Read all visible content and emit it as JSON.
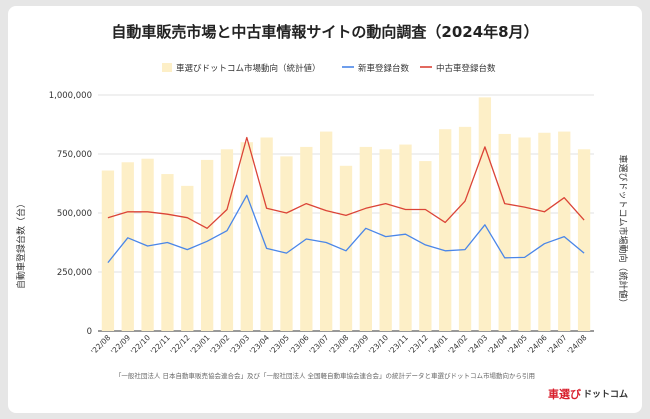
{
  "chart_data": {
    "type": "bar",
    "title": "自動車販売市場と中古車情報サイトの動向調査（2024年8月）",
    "ylabel": "自動車登録台数（台）",
    "y2label": "車選びドットコム市場動向（統計値）",
    "ylim": [
      0,
      1000000
    ],
    "yticks": [
      "0",
      "250,000",
      "500,000",
      "750,000",
      "1,000,000"
    ],
    "grid": true,
    "legend": "top",
    "categories": [
      "'22/08",
      "'22/09",
      "'22/10",
      "'22/11",
      "'22/12",
      "'23/01",
      "'23/02",
      "'23/03",
      "'23/04",
      "'23/05",
      "'23/06",
      "'23/07",
      "'23/08",
      "'23/09",
      "'23/10",
      "'23/11",
      "'23/12",
      "'24/01",
      "'24/02",
      "'24/03",
      "'24/04",
      "'24/05",
      "'24/06",
      "'24/07",
      "'24/08"
    ],
    "series": [
      {
        "name": "車選びドットコム市場動向（統計値）",
        "kind": "bar",
        "color": "#fdefc7",
        "values": [
          680000,
          715000,
          730000,
          665000,
          615000,
          725000,
          770000,
          800000,
          820000,
          740000,
          780000,
          845000,
          700000,
          780000,
          770000,
          790000,
          720000,
          855000,
          865000,
          990000,
          835000,
          820000,
          840000,
          845000,
          770000
        ]
      },
      {
        "name": "新車登録台数",
        "kind": "line",
        "color": "#4a86e8",
        "values": [
          290000,
          395000,
          360000,
          375000,
          345000,
          380000,
          425000,
          575000,
          350000,
          330000,
          390000,
          375000,
          340000,
          435000,
          400000,
          410000,
          365000,
          340000,
          345000,
          450000,
          310000,
          312000,
          370000,
          400000,
          330000
        ]
      },
      {
        "name": "中古車登録台数",
        "kind": "line",
        "color": "#db4437",
        "values": [
          480000,
          505000,
          505000,
          495000,
          480000,
          435000,
          515000,
          820000,
          520000,
          500000,
          540000,
          510000,
          490000,
          520000,
          540000,
          515000,
          515000,
          460000,
          550000,
          780000,
          540000,
          525000,
          505000,
          565000,
          470000
        ]
      }
    ],
    "annotation": "「一般社団法人 日本自動車販売協会連合会」及び「一般社団法人 全国軽自動車協会連合会」の統計データと車選びドットコム市場動向から引用"
  },
  "logo": {
    "brand_red": "車選び",
    "brand_dark": "ドットコム"
  },
  "colors": {
    "grid": "#e0e0e0",
    "axis": "#333333"
  }
}
